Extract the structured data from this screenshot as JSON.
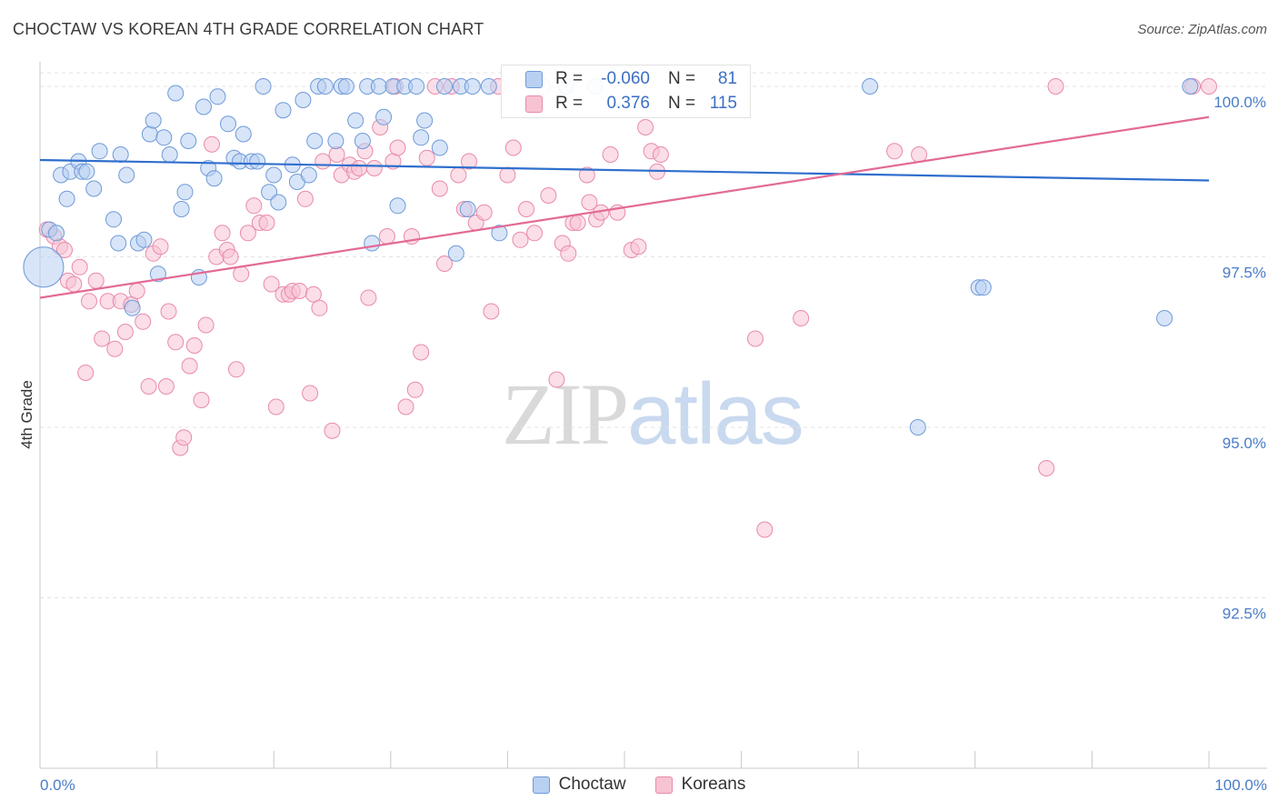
{
  "title": "CHOCTAW VS KOREAN 4TH GRADE CORRELATION CHART",
  "source": "Source: ZipAtlas.com",
  "watermark": {
    "part1": "ZIP",
    "part2": "atlas"
  },
  "legend": {
    "rows": [
      {
        "r_label": "R =",
        "r_value": "-0.060",
        "n_label": "N =",
        "n_value": "81"
      },
      {
        "r_label": "R =",
        "r_value": "0.376",
        "n_label": "N =",
        "n_value": "115"
      }
    ]
  },
  "bottom_legend": [
    "Choctaw",
    "Koreans"
  ],
  "colors": {
    "choctaw_fill": "#b8d0f2",
    "choctaw_stroke": "#6f9ad8",
    "choctaw_line": "#2f6fcd",
    "korean_fill": "#f7c3d3",
    "korean_stroke": "#e98aab",
    "korean_line": "#e36a96",
    "axis_label": "#4a7cc7",
    "grid": "#e3e3e3"
  },
  "chart_data": {
    "type": "scatter",
    "title": "CHOCTAW VS KOREAN 4TH GRADE CORRELATION CHART",
    "xlabel": "",
    "ylabel": "4th Grade",
    "xlim": [
      0,
      100
    ],
    "ylim": [
      90.0,
      100.2
    ],
    "x_tick_labels": [
      "0.0%",
      "100.0%"
    ],
    "y_ticks": [
      92.5,
      95.0,
      97.5,
      100.0
    ],
    "y_tick_labels": [
      "92.5%",
      "95.0%",
      "97.5%",
      "100.0%"
    ],
    "grid": true,
    "legend_position": "top-center",
    "series": [
      {
        "name": "Choctaw",
        "r": -0.06,
        "n": 81,
        "trend": {
          "x": [
            0,
            100
          ],
          "y": [
            98.92,
            98.62
          ]
        },
        "points": [
          [
            0.3,
            97.35
          ],
          [
            0.8,
            97.9
          ],
          [
            1.4,
            97.85
          ],
          [
            1.8,
            98.7
          ],
          [
            2.3,
            98.35
          ],
          [
            2.6,
            98.75
          ],
          [
            3.3,
            98.9
          ],
          [
            3.6,
            98.75
          ],
          [
            4.0,
            98.75
          ],
          [
            4.6,
            98.5
          ],
          [
            5.1,
            99.05
          ],
          [
            6.3,
            98.05
          ],
          [
            6.7,
            97.7
          ],
          [
            6.9,
            99.0
          ],
          [
            7.4,
            98.7
          ],
          [
            7.9,
            96.75
          ],
          [
            8.4,
            97.7
          ],
          [
            8.9,
            97.75
          ],
          [
            9.4,
            99.3
          ],
          [
            9.7,
            99.5
          ],
          [
            10.1,
            97.25
          ],
          [
            10.6,
            99.25
          ],
          [
            11.1,
            99.0
          ],
          [
            11.6,
            99.9
          ],
          [
            12.1,
            98.2
          ],
          [
            12.4,
            98.45
          ],
          [
            12.7,
            99.2
          ],
          [
            13.6,
            97.2
          ],
          [
            14.0,
            99.7
          ],
          [
            14.4,
            98.8
          ],
          [
            14.9,
            98.65
          ],
          [
            15.2,
            99.85
          ],
          [
            16.1,
            99.45
          ],
          [
            16.6,
            98.95
          ],
          [
            17.1,
            98.9
          ],
          [
            17.4,
            99.3
          ],
          [
            18.1,
            98.9
          ],
          [
            18.6,
            98.9
          ],
          [
            19.1,
            100.0
          ],
          [
            19.6,
            98.45
          ],
          [
            20.0,
            98.7
          ],
          [
            20.4,
            98.3
          ],
          [
            20.8,
            99.65
          ],
          [
            21.6,
            98.85
          ],
          [
            22.0,
            98.6
          ],
          [
            22.5,
            99.8
          ],
          [
            23.0,
            98.7
          ],
          [
            23.5,
            99.2
          ],
          [
            23.8,
            100.0
          ],
          [
            24.4,
            100.0
          ],
          [
            25.3,
            99.2
          ],
          [
            25.8,
            100.0
          ],
          [
            26.2,
            100.0
          ],
          [
            27.0,
            99.5
          ],
          [
            27.6,
            99.2
          ],
          [
            28.0,
            100.0
          ],
          [
            28.4,
            97.7
          ],
          [
            29.0,
            100.0
          ],
          [
            29.4,
            99.55
          ],
          [
            30.2,
            100.0
          ],
          [
            30.6,
            98.25
          ],
          [
            31.2,
            100.0
          ],
          [
            32.2,
            100.0
          ],
          [
            32.6,
            99.25
          ],
          [
            32.9,
            99.5
          ],
          [
            34.2,
            99.1
          ],
          [
            34.6,
            100.0
          ],
          [
            35.6,
            97.55
          ],
          [
            36.0,
            100.0
          ],
          [
            36.6,
            98.2
          ],
          [
            37.0,
            100.0
          ],
          [
            38.4,
            100.0
          ],
          [
            39.3,
            97.85
          ],
          [
            45.0,
            100.0
          ],
          [
            47.5,
            100.0
          ],
          [
            71.0,
            100.0
          ],
          [
            75.1,
            95.0
          ],
          [
            80.3,
            97.05
          ],
          [
            80.7,
            97.05
          ],
          [
            96.2,
            96.6
          ],
          [
            98.4,
            100.0
          ]
        ]
      },
      {
        "name": "Koreans",
        "r": 0.376,
        "n": 115,
        "trend": {
          "x": [
            0,
            100
          ],
          "y": [
            96.9,
            99.55
          ]
        },
        "points": [
          [
            0.6,
            97.9
          ],
          [
            1.2,
            97.8
          ],
          [
            1.7,
            97.65
          ],
          [
            2.1,
            97.6
          ],
          [
            2.4,
            97.15
          ],
          [
            2.9,
            97.1
          ],
          [
            3.4,
            97.35
          ],
          [
            3.9,
            95.8
          ],
          [
            4.2,
            96.85
          ],
          [
            4.8,
            97.15
          ],
          [
            5.3,
            96.3
          ],
          [
            5.8,
            96.85
          ],
          [
            6.4,
            96.15
          ],
          [
            6.9,
            96.85
          ],
          [
            7.3,
            96.4
          ],
          [
            7.8,
            96.8
          ],
          [
            8.3,
            97.0
          ],
          [
            8.8,
            96.55
          ],
          [
            9.3,
            95.6
          ],
          [
            9.7,
            97.55
          ],
          [
            10.3,
            97.65
          ],
          [
            10.8,
            95.6
          ],
          [
            11.0,
            96.7
          ],
          [
            11.6,
            96.25
          ],
          [
            12.0,
            94.7
          ],
          [
            12.3,
            94.85
          ],
          [
            12.8,
            95.9
          ],
          [
            13.2,
            96.2
          ],
          [
            13.8,
            95.4
          ],
          [
            14.2,
            96.5
          ],
          [
            14.7,
            99.15
          ],
          [
            15.1,
            97.5
          ],
          [
            15.6,
            97.85
          ],
          [
            16.0,
            97.6
          ],
          [
            16.3,
            97.5
          ],
          [
            16.8,
            95.85
          ],
          [
            17.2,
            97.25
          ],
          [
            17.8,
            97.85
          ],
          [
            18.3,
            98.25
          ],
          [
            18.8,
            98.0
          ],
          [
            19.4,
            98.0
          ],
          [
            19.8,
            97.1
          ],
          [
            20.2,
            95.3
          ],
          [
            20.8,
            96.95
          ],
          [
            21.3,
            96.95
          ],
          [
            21.6,
            97.0
          ],
          [
            22.2,
            97.0
          ],
          [
            22.7,
            98.35
          ],
          [
            23.1,
            95.5
          ],
          [
            23.4,
            96.95
          ],
          [
            23.9,
            96.75
          ],
          [
            24.2,
            98.9
          ],
          [
            25.0,
            94.95
          ],
          [
            25.4,
            99.0
          ],
          [
            25.8,
            98.7
          ],
          [
            26.5,
            98.85
          ],
          [
            26.9,
            98.75
          ],
          [
            27.3,
            98.8
          ],
          [
            27.8,
            99.05
          ],
          [
            28.1,
            96.9
          ],
          [
            28.6,
            98.8
          ],
          [
            29.1,
            99.4
          ],
          [
            29.7,
            97.8
          ],
          [
            30.2,
            98.9
          ],
          [
            30.6,
            99.1
          ],
          [
            31.3,
            95.3
          ],
          [
            31.8,
            97.8
          ],
          [
            32.1,
            95.55
          ],
          [
            32.6,
            96.1
          ],
          [
            33.1,
            98.95
          ],
          [
            33.8,
            100.0
          ],
          [
            34.2,
            98.5
          ],
          [
            34.6,
            97.4
          ],
          [
            35.2,
            100.0
          ],
          [
            35.8,
            98.7
          ],
          [
            36.3,
            98.2
          ],
          [
            36.7,
            98.9
          ],
          [
            37.3,
            98.0
          ],
          [
            38.0,
            98.15
          ],
          [
            38.6,
            96.7
          ],
          [
            39.2,
            100.0
          ],
          [
            40.0,
            98.7
          ],
          [
            40.5,
            99.1
          ],
          [
            41.1,
            97.75
          ],
          [
            41.6,
            98.2
          ],
          [
            42.3,
            97.85
          ],
          [
            43.0,
            100.0
          ],
          [
            43.5,
            98.4
          ],
          [
            44.2,
            95.7
          ],
          [
            44.7,
            97.7
          ],
          [
            45.2,
            97.55
          ],
          [
            45.6,
            98.0
          ],
          [
            46.0,
            98.0
          ],
          [
            46.8,
            98.7
          ],
          [
            47.0,
            98.3
          ],
          [
            47.6,
            98.05
          ],
          [
            48.0,
            98.15
          ],
          [
            48.8,
            99.0
          ],
          [
            49.4,
            98.15
          ],
          [
            50.6,
            97.6
          ],
          [
            51.2,
            97.65
          ],
          [
            51.8,
            99.4
          ],
          [
            52.3,
            99.05
          ],
          [
            52.8,
            98.75
          ],
          [
            53.1,
            99.0
          ],
          [
            61.2,
            96.3
          ],
          [
            62.0,
            93.5
          ],
          [
            65.1,
            96.6
          ],
          [
            73.1,
            99.05
          ],
          [
            75.2,
            99.0
          ],
          [
            86.1,
            94.4
          ],
          [
            86.9,
            100.0
          ],
          [
            98.6,
            100.0
          ],
          [
            100.0,
            100.0
          ],
          [
            30.4,
            100.0
          ]
        ]
      }
    ]
  }
}
